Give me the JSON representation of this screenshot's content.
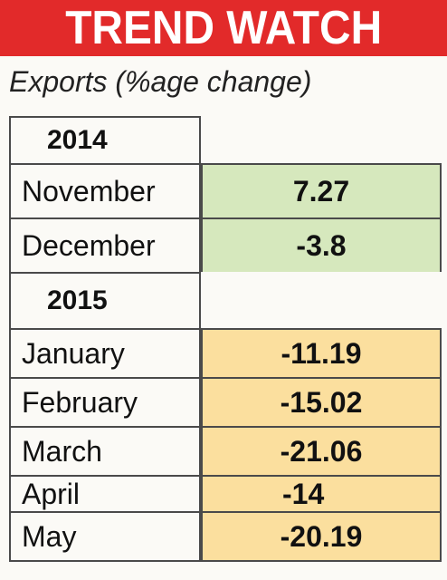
{
  "header": {
    "title": "TREND WATCH",
    "subtitle": "Exports (%age change)"
  },
  "colors": {
    "banner": "#e22a2a",
    "green_fill": "#d6e8bd",
    "orange_fill": "#fbdf9e"
  },
  "chart_data": {
    "type": "table",
    "title": "TREND WATCH",
    "subtitle": "Exports (%age change)",
    "groups": [
      {
        "year": "2014",
        "rows": [
          {
            "month": "November",
            "value": "7.27"
          },
          {
            "month": "December",
            "value": "-3.8"
          }
        ]
      },
      {
        "year": "2015",
        "rows": [
          {
            "month": "January",
            "value": "-11.19"
          },
          {
            "month": "February",
            "value": "-15.02"
          },
          {
            "month": "March",
            "value": "-21.06"
          },
          {
            "month": "April",
            "value": "-14"
          },
          {
            "month": "May",
            "value": "-20.19"
          }
        ]
      }
    ]
  }
}
